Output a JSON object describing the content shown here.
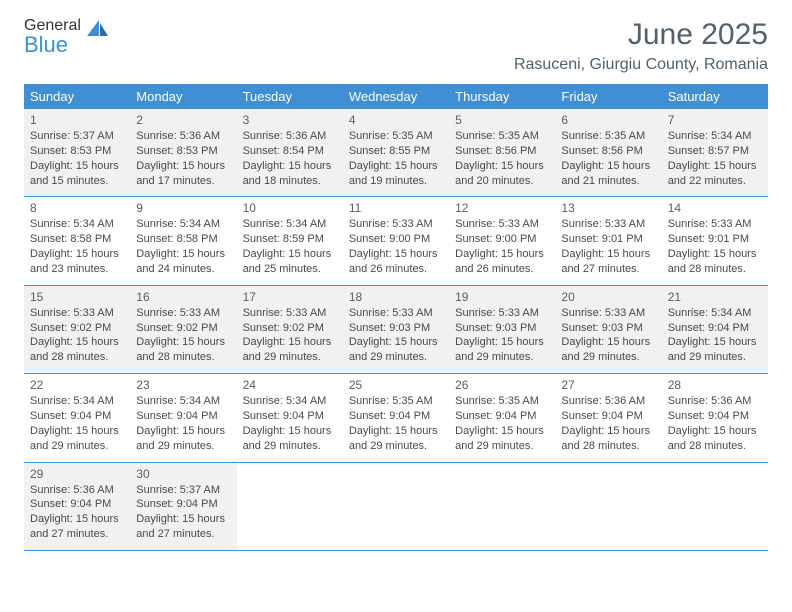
{
  "brand": {
    "general": "General",
    "blue": "Blue"
  },
  "title": {
    "month_year": "June 2025",
    "location": "Rasuceni, Giurgiu County, Romania"
  },
  "colors": {
    "header_bg": "#3f8fd2",
    "header_text": "#ffffff",
    "border": "#3f8fd2",
    "shaded_bg": "#f1f1f1",
    "body_text": "#4a4a4a",
    "title_text": "#55606a",
    "logo_gray": "#606a74",
    "logo_blue": "#3f8fd2"
  },
  "weekdays": [
    "Sunday",
    "Monday",
    "Tuesday",
    "Wednesday",
    "Thursday",
    "Friday",
    "Saturday"
  ],
  "weeks": [
    {
      "shaded": true,
      "days": [
        {
          "n": "1",
          "sr": "5:37 AM",
          "ss": "8:53 PM",
          "dl": "15 hours and 15 minutes."
        },
        {
          "n": "2",
          "sr": "5:36 AM",
          "ss": "8:53 PM",
          "dl": "15 hours and 17 minutes."
        },
        {
          "n": "3",
          "sr": "5:36 AM",
          "ss": "8:54 PM",
          "dl": "15 hours and 18 minutes."
        },
        {
          "n": "4",
          "sr": "5:35 AM",
          "ss": "8:55 PM",
          "dl": "15 hours and 19 minutes."
        },
        {
          "n": "5",
          "sr": "5:35 AM",
          "ss": "8:56 PM",
          "dl": "15 hours and 20 minutes."
        },
        {
          "n": "6",
          "sr": "5:35 AM",
          "ss": "8:56 PM",
          "dl": "15 hours and 21 minutes."
        },
        {
          "n": "7",
          "sr": "5:34 AM",
          "ss": "8:57 PM",
          "dl": "15 hours and 22 minutes."
        }
      ]
    },
    {
      "shaded": false,
      "days": [
        {
          "n": "8",
          "sr": "5:34 AM",
          "ss": "8:58 PM",
          "dl": "15 hours and 23 minutes."
        },
        {
          "n": "9",
          "sr": "5:34 AM",
          "ss": "8:58 PM",
          "dl": "15 hours and 24 minutes."
        },
        {
          "n": "10",
          "sr": "5:34 AM",
          "ss": "8:59 PM",
          "dl": "15 hours and 25 minutes."
        },
        {
          "n": "11",
          "sr": "5:33 AM",
          "ss": "9:00 PM",
          "dl": "15 hours and 26 minutes."
        },
        {
          "n": "12",
          "sr": "5:33 AM",
          "ss": "9:00 PM",
          "dl": "15 hours and 26 minutes."
        },
        {
          "n": "13",
          "sr": "5:33 AM",
          "ss": "9:01 PM",
          "dl": "15 hours and 27 minutes."
        },
        {
          "n": "14",
          "sr": "5:33 AM",
          "ss": "9:01 PM",
          "dl": "15 hours and 28 minutes."
        }
      ]
    },
    {
      "shaded": true,
      "days": [
        {
          "n": "15",
          "sr": "5:33 AM",
          "ss": "9:02 PM",
          "dl": "15 hours and 28 minutes."
        },
        {
          "n": "16",
          "sr": "5:33 AM",
          "ss": "9:02 PM",
          "dl": "15 hours and 28 minutes."
        },
        {
          "n": "17",
          "sr": "5:33 AM",
          "ss": "9:02 PM",
          "dl": "15 hours and 29 minutes."
        },
        {
          "n": "18",
          "sr": "5:33 AM",
          "ss": "9:03 PM",
          "dl": "15 hours and 29 minutes."
        },
        {
          "n": "19",
          "sr": "5:33 AM",
          "ss": "9:03 PM",
          "dl": "15 hours and 29 minutes."
        },
        {
          "n": "20",
          "sr": "5:33 AM",
          "ss": "9:03 PM",
          "dl": "15 hours and 29 minutes."
        },
        {
          "n": "21",
          "sr": "5:34 AM",
          "ss": "9:04 PM",
          "dl": "15 hours and 29 minutes."
        }
      ]
    },
    {
      "shaded": false,
      "days": [
        {
          "n": "22",
          "sr": "5:34 AM",
          "ss": "9:04 PM",
          "dl": "15 hours and 29 minutes."
        },
        {
          "n": "23",
          "sr": "5:34 AM",
          "ss": "9:04 PM",
          "dl": "15 hours and 29 minutes."
        },
        {
          "n": "24",
          "sr": "5:34 AM",
          "ss": "9:04 PM",
          "dl": "15 hours and 29 minutes."
        },
        {
          "n": "25",
          "sr": "5:35 AM",
          "ss": "9:04 PM",
          "dl": "15 hours and 29 minutes."
        },
        {
          "n": "26",
          "sr": "5:35 AM",
          "ss": "9:04 PM",
          "dl": "15 hours and 29 minutes."
        },
        {
          "n": "27",
          "sr": "5:36 AM",
          "ss": "9:04 PM",
          "dl": "15 hours and 28 minutes."
        },
        {
          "n": "28",
          "sr": "5:36 AM",
          "ss": "9:04 PM",
          "dl": "15 hours and 28 minutes."
        }
      ]
    },
    {
      "shaded": true,
      "days": [
        {
          "n": "29",
          "sr": "5:36 AM",
          "ss": "9:04 PM",
          "dl": "15 hours and 27 minutes."
        },
        {
          "n": "30",
          "sr": "5:37 AM",
          "ss": "9:04 PM",
          "dl": "15 hours and 27 minutes."
        },
        null,
        null,
        null,
        null,
        null
      ]
    }
  ],
  "labels": {
    "sunrise": "Sunrise:",
    "sunset": "Sunset:",
    "daylight": "Daylight:"
  }
}
